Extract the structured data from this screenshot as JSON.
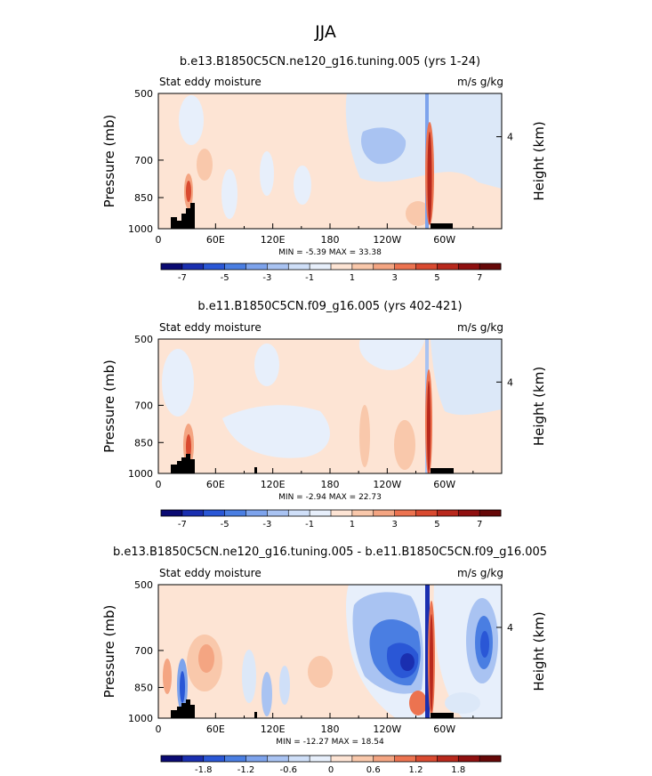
{
  "figure_title": "JJA",
  "chart_data": [
    {
      "type": "heatmap",
      "title": "b.e13.B1850C5CN.ne120_g16.tuning.005 (yrs 1-24)",
      "left_label": "Stat eddy moisture",
      "right_label": "m/s g/kg",
      "ylabel": "Pressure (mb)",
      "ylabel_right": "Height (km)",
      "y_ticks": [
        "500",
        "700",
        "850",
        "1000"
      ],
      "y_right_ticks": [
        "4"
      ],
      "x_ticks": [
        "0",
        "60E",
        "120E",
        "180",
        "120W",
        "60W"
      ],
      "xlim": [
        0,
        360
      ],
      "ylim": [
        1000,
        500
      ],
      "min_max_text": "MIN =   -5.39   MAX =   33.38",
      "colorbar_labels": [
        "-7",
        "-5",
        "-3",
        "-1",
        "1",
        "3",
        "5",
        "7"
      ]
    },
    {
      "type": "heatmap",
      "title": "b.e11.B1850C5CN.f09_g16.005 (yrs 402-421)",
      "left_label": "Stat eddy moisture",
      "right_label": "m/s g/kg",
      "ylabel": "Pressure (mb)",
      "ylabel_right": "Height (km)",
      "y_ticks": [
        "500",
        "700",
        "850",
        "1000"
      ],
      "y_right_ticks": [
        "4"
      ],
      "x_ticks": [
        "0",
        "60E",
        "120E",
        "180",
        "120W",
        "60W"
      ],
      "xlim": [
        0,
        360
      ],
      "ylim": [
        1000,
        500
      ],
      "min_max_text": "MIN =   -2.94   MAX =   22.73",
      "colorbar_labels": [
        "-7",
        "-5",
        "-3",
        "-1",
        "1",
        "3",
        "5",
        "7"
      ]
    },
    {
      "type": "heatmap",
      "title": "b.e13.B1850C5CN.ne120_g16.tuning.005 - b.e11.B1850C5CN.f09_g16.005",
      "left_label": "Stat eddy moisture",
      "right_label": "m/s g/kg",
      "ylabel": "Pressure (mb)",
      "ylabel_right": "Height (km)",
      "y_ticks": [
        "500",
        "700",
        "850",
        "1000"
      ],
      "y_right_ticks": [
        "4"
      ],
      "x_ticks": [
        "0",
        "60E",
        "120E",
        "180",
        "120W",
        "60W"
      ],
      "xlim": [
        0,
        360
      ],
      "ylim": [
        1000,
        500
      ],
      "min_max_text": "MIN =  -12.27   MAX =   18.54",
      "colorbar_labels": [
        "-1.8",
        "-1.2",
        "-0.6",
        "0",
        "0.6",
        "1.2",
        "1.8"
      ]
    }
  ],
  "colorbar_colors": [
    "#0a0a72",
    "#1a2fb0",
    "#2a57d6",
    "#4a7ee2",
    "#7da3ec",
    "#a9c3f2",
    "#cfdff8",
    "#e7effb",
    "#fde4d4",
    "#f9c8ab",
    "#f4a582",
    "#ec7350",
    "#d94a30",
    "#b8281c",
    "#8f1010",
    "#660808"
  ]
}
